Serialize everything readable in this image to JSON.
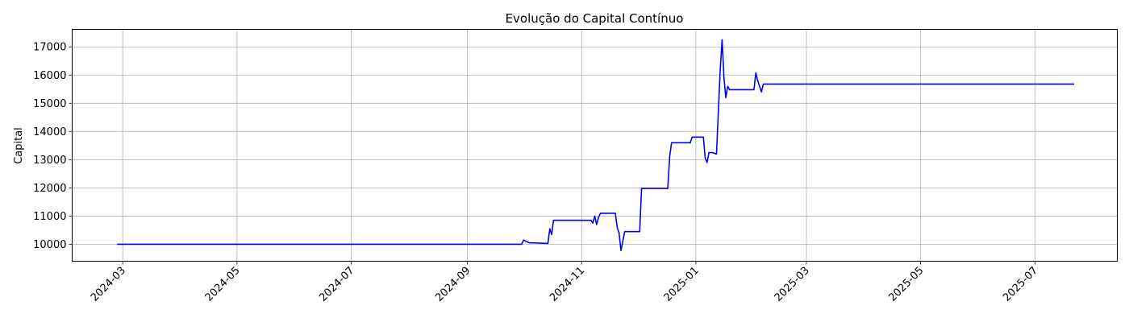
{
  "chart_data": {
    "type": "line",
    "title": "Evolução do Capital Contínuo",
    "xlabel": "",
    "ylabel": "Capital",
    "grid": true,
    "line_color": "#0000ff",
    "xlim": [
      "2024-02-03",
      "2025-08-14"
    ],
    "ylim": [
      9400,
      17620
    ],
    "x_ticks": [
      "2024-03-01",
      "2024-05-01",
      "2024-07-01",
      "2024-09-01",
      "2024-11-01",
      "2025-01-01",
      "2025-03-01",
      "2025-05-01",
      "2025-07-01"
    ],
    "x_tick_labels": [
      "2024-03",
      "2024-05",
      "2024-07",
      "2024-09",
      "2024-11",
      "2025-01",
      "2025-03",
      "2025-05",
      "2025-07"
    ],
    "y_ticks": [
      10000,
      11000,
      12000,
      13000,
      14000,
      15000,
      16000,
      17000
    ],
    "y_tick_labels": [
      "10000",
      "11000",
      "12000",
      "13000",
      "14000",
      "15000",
      "16000",
      "17000"
    ],
    "series": [
      {
        "x": [
          "2024-02-27",
          "2024-09-30",
          "2024-10-01",
          "2024-10-04",
          "2024-10-06",
          "2024-10-14",
          "2024-10-15",
          "2024-10-16",
          "2024-10-17",
          "2024-11-06",
          "2024-11-07",
          "2024-11-08",
          "2024-11-09",
          "2024-11-10",
          "2024-11-11",
          "2024-11-19",
          "2024-11-20",
          "2024-11-21",
          "2024-11-22",
          "2024-11-24",
          "2024-11-25",
          "2024-12-02",
          "2024-12-03",
          "2024-12-17",
          "2024-12-18",
          "2024-12-19",
          "2024-12-29",
          "2024-12-30",
          "2025-01-05",
          "2025-01-06",
          "2025-01-07",
          "2025-01-08",
          "2025-01-10",
          "2025-01-12",
          "2025-01-13",
          "2025-01-14",
          "2025-01-15",
          "2025-01-16",
          "2025-01-17",
          "2025-01-18",
          "2025-01-19",
          "2025-01-20",
          "2025-02-01",
          "2025-02-02",
          "2025-02-03",
          "2025-02-05",
          "2025-02-06",
          "2025-07-22"
        ],
        "y": [
          10000,
          10000,
          10150,
          10050,
          10050,
          10030,
          10550,
          10350,
          10850,
          10850,
          10750,
          11000,
          10700,
          10950,
          11100,
          11100,
          10600,
          10400,
          9780,
          10450,
          10450,
          10450,
          11980,
          11980,
          13100,
          13600,
          13600,
          13800,
          13800,
          13050,
          12900,
          13250,
          13250,
          13200,
          14700,
          16200,
          17250,
          15900,
          15200,
          15600,
          15480,
          15480,
          15480,
          16080,
          15800,
          15400,
          15680,
          15680
        ]
      }
    ]
  }
}
